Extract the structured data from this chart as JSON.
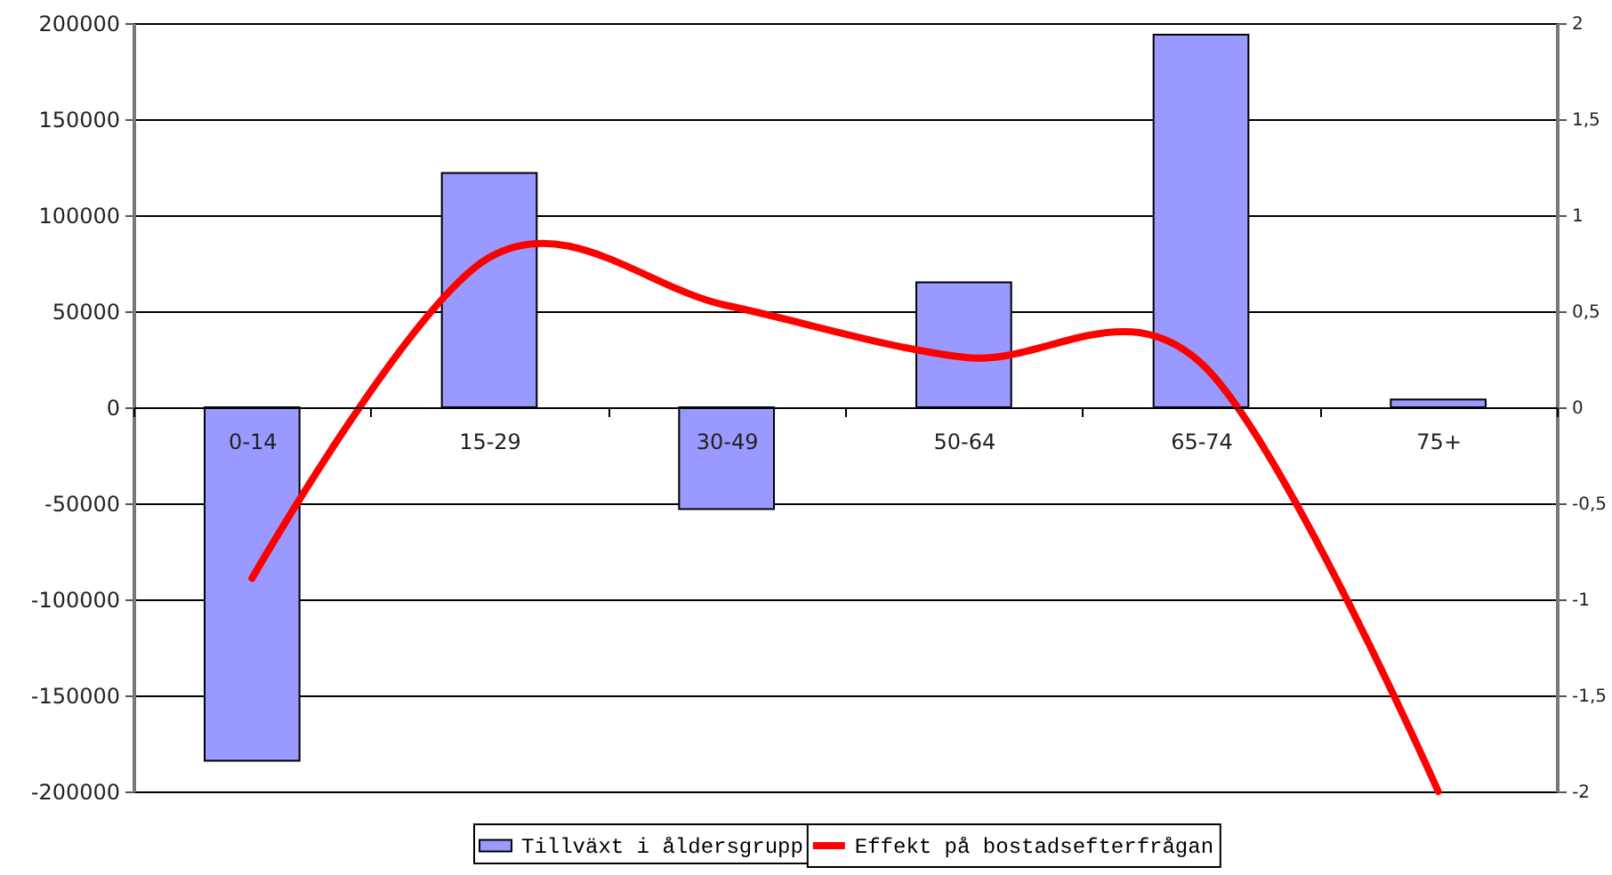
{
  "chart_data": {
    "type": "bar",
    "categories": [
      "0-14",
      "15-29",
      "30-49",
      "50-64",
      "65-74",
      "75+"
    ],
    "series": [
      {
        "name": "Tillväxt i åldersgrupp",
        "color": "#9999ff",
        "values": [
          -184000,
          122000,
          -53000,
          65000,
          194000,
          4000
        ]
      },
      {
        "name": "Effekt på bostadsefterfrågan",
        "type": "line",
        "axis": "y2",
        "color": "#ff0000",
        "values": [
          -0.89,
          0.78,
          0.53,
          0.26,
          0.23,
          -2.0
        ]
      }
    ],
    "ylim": [
      -200000,
      200000
    ],
    "yticks": [
      200000,
      150000,
      100000,
      50000,
      0,
      -50000,
      -100000,
      -150000,
      -200000
    ],
    "y2lim": [
      -2,
      2
    ],
    "y2ticks": [
      2,
      {
        "value": 1.5,
        "label": "1,5"
      },
      1,
      {
        "value": 0.5,
        "label": "0,5"
      },
      0,
      {
        "value": -0.5,
        "label": "-0,5"
      },
      -1,
      {
        "value": -1.5,
        "label": "-1,5"
      },
      -2
    ],
    "grid": "y",
    "legend": "bottom"
  }
}
